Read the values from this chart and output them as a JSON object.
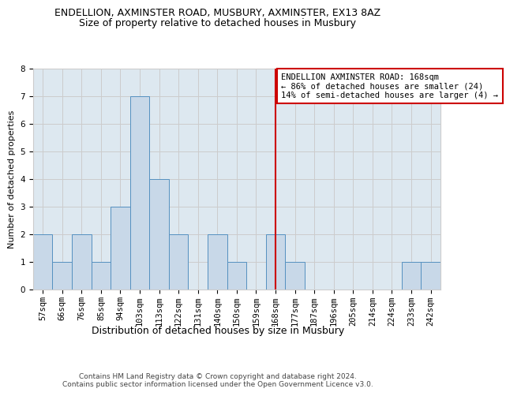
{
  "title": "ENDELLION, AXMINSTER ROAD, MUSBURY, AXMINSTER, EX13 8AZ",
  "subtitle": "Size of property relative to detached houses in Musbury",
  "xlabel": "Distribution of detached houses by size in Musbury",
  "ylabel": "Number of detached properties",
  "bins": [
    "57sqm",
    "66sqm",
    "76sqm",
    "85sqm",
    "94sqm",
    "103sqm",
    "113sqm",
    "122sqm",
    "131sqm",
    "140sqm",
    "150sqm",
    "159sqm",
    "168sqm",
    "177sqm",
    "187sqm",
    "196sqm",
    "205sqm",
    "214sqm",
    "224sqm",
    "233sqm",
    "242sqm"
  ],
  "values": [
    2,
    1,
    2,
    1,
    3,
    7,
    4,
    2,
    0,
    2,
    1,
    0,
    2,
    1,
    0,
    0,
    0,
    0,
    0,
    1,
    1
  ],
  "bar_color": "#c8d8e8",
  "bar_edge_color": "#5590c0",
  "highlight_line_index": 12,
  "highlight_line_color": "#cc0000",
  "annotation_text": "ENDELLION AXMINSTER ROAD: 168sqm\n← 86% of detached houses are smaller (24)\n14% of semi-detached houses are larger (4) →",
  "annotation_box_color": "#ffffff",
  "annotation_box_edge_color": "#cc0000",
  "ylim": [
    0,
    8
  ],
  "yticks": [
    0,
    1,
    2,
    3,
    4,
    5,
    6,
    7,
    8
  ],
  "grid_color": "#cccccc",
  "background_color": "#dde8f0",
  "footer_text": "Contains HM Land Registry data © Crown copyright and database right 2024.\nContains public sector information licensed under the Open Government Licence v3.0.",
  "title_fontsize": 9,
  "subtitle_fontsize": 9,
  "xlabel_fontsize": 9,
  "ylabel_fontsize": 8,
  "tick_fontsize": 7.5,
  "annotation_fontsize": 7.5,
  "footer_fontsize": 6.5
}
